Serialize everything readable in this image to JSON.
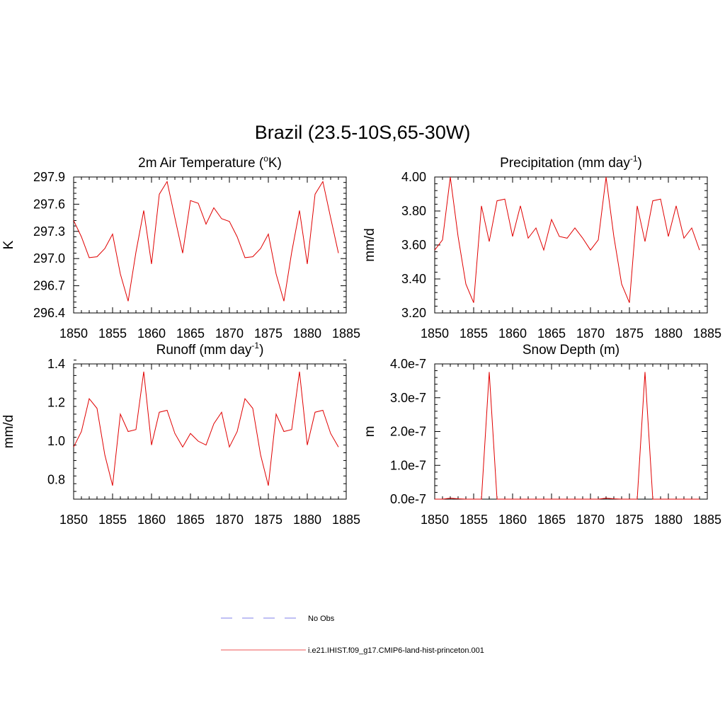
{
  "figure": {
    "title": "Brazil (23.5-10S,65-30W)"
  },
  "legend": {
    "entries": [
      {
        "label": "No Obs",
        "color": "#9999ee",
        "dash": "dashed"
      },
      {
        "label": "i.e21.IHIST.f09_g17.CMIP6-land-hist-princeton.001",
        "color": "#ee5555",
        "dash": "solid"
      }
    ]
  },
  "chart_data": [
    {
      "id": "temperature",
      "type": "line",
      "title": "2m Air Temperature (°K)",
      "title_parts": {
        "pre": "2m Air Temperature (",
        "sup": "o",
        "post": "K)"
      },
      "ylabel": "K",
      "xlabel": "",
      "xlim": [
        1850,
        1885
      ],
      "ylim": [
        296.4,
        297.9
      ],
      "xticks": [
        1850,
        1855,
        1860,
        1865,
        1870,
        1875,
        1880,
        1885
      ],
      "xtick_labels": [
        "1850",
        "1855",
        "1860",
        "1865",
        "1870",
        "1875",
        "1880",
        "1885"
      ],
      "yticks": [
        296.4,
        296.7,
        297.0,
        297.3,
        297.6,
        297.9
      ],
      "ytick_labels": [
        "296.4",
        "296.7",
        "297.0",
        "297.3",
        "297.6",
        "297.9"
      ],
      "series": [
        {
          "color": "#e00000",
          "x": [
            1850,
            1851,
            1852,
            1853,
            1854,
            1855,
            1856,
            1857,
            1858,
            1859,
            1860,
            1861,
            1862,
            1863,
            1864,
            1865,
            1866,
            1867,
            1868,
            1869,
            1870,
            1871,
            1872,
            1873,
            1874,
            1875,
            1876,
            1877,
            1878,
            1879,
            1880,
            1881,
            1882,
            1883,
            1884
          ],
          "values": [
            297.42,
            297.24,
            297.01,
            297.02,
            297.11,
            297.27,
            296.83,
            296.53,
            297.07,
            297.53,
            296.94,
            297.71,
            297.85,
            297.45,
            297.06,
            297.64,
            297.61,
            297.38,
            297.56,
            297.44,
            297.41,
            297.24,
            297.01,
            297.02,
            297.11,
            297.27,
            296.83,
            296.53,
            297.07,
            297.53,
            296.94,
            297.71,
            297.85,
            297.45,
            297.06
          ]
        }
      ]
    },
    {
      "id": "precipitation",
      "type": "line",
      "title": "Precipitation (mm day-1)",
      "title_parts": {
        "pre": "Precipitation (mm day",
        "sup": "-1",
        "post": ")"
      },
      "ylabel": "mm/d",
      "xlabel": "",
      "xlim": [
        1850,
        1885
      ],
      "ylim": [
        3.2,
        4.0
      ],
      "xticks": [
        1850,
        1855,
        1860,
        1865,
        1870,
        1875,
        1880,
        1885
      ],
      "xtick_labels": [
        "1850",
        "1855",
        "1860",
        "1865",
        "1870",
        "1875",
        "1880",
        "1885"
      ],
      "yticks": [
        3.2,
        3.4,
        3.6,
        3.8,
        4.0
      ],
      "ytick_labels": [
        "3.20",
        "3.40",
        "3.60",
        "3.80",
        "4.00"
      ],
      "series": [
        {
          "color": "#e00000",
          "x": [
            1850,
            1851,
            1852,
            1853,
            1854,
            1855,
            1856,
            1857,
            1858,
            1859,
            1860,
            1861,
            1862,
            1863,
            1864,
            1865,
            1866,
            1867,
            1868,
            1869,
            1870,
            1871,
            1872,
            1873,
            1874,
            1875,
            1876,
            1877,
            1878,
            1879,
            1880,
            1881,
            1882,
            1883,
            1884
          ],
          "values": [
            3.57,
            3.63,
            4.0,
            3.65,
            3.37,
            3.26,
            3.83,
            3.62,
            3.86,
            3.87,
            3.65,
            3.83,
            3.64,
            3.7,
            3.57,
            3.75,
            3.65,
            3.64,
            3.7,
            3.64,
            3.57,
            3.63,
            4.0,
            3.65,
            3.37,
            3.26,
            3.83,
            3.62,
            3.86,
            3.87,
            3.65,
            3.83,
            3.64,
            3.7,
            3.57
          ]
        }
      ]
    },
    {
      "id": "runoff",
      "type": "line",
      "title": "Runoff (mm day-1)",
      "title_parts": {
        "pre": "Runoff (mm day",
        "sup": "-1",
        "post": ")"
      },
      "ylabel": "mm/d",
      "xlabel": "",
      "xlim": [
        1850,
        1885
      ],
      "ylim": [
        0.7,
        1.4
      ],
      "xticks": [
        1850,
        1855,
        1860,
        1865,
        1870,
        1875,
        1880,
        1885
      ],
      "xtick_labels": [
        "1850",
        "1855",
        "1860",
        "1865",
        "1870",
        "1875",
        "1880",
        "1885"
      ],
      "yticks": [
        0.8,
        1.0,
        1.2,
        1.4
      ],
      "ytick_labels": [
        "0.8",
        "1.0",
        "1.2",
        "1.4"
      ],
      "series": [
        {
          "color": "#e00000",
          "x": [
            1850,
            1851,
            1852,
            1853,
            1854,
            1855,
            1856,
            1857,
            1858,
            1859,
            1860,
            1861,
            1862,
            1863,
            1864,
            1865,
            1866,
            1867,
            1868,
            1869,
            1870,
            1871,
            1872,
            1873,
            1874,
            1875,
            1876,
            1877,
            1878,
            1879,
            1880,
            1881,
            1882,
            1883,
            1884
          ],
          "values": [
            0.97,
            1.05,
            1.22,
            1.17,
            0.93,
            0.77,
            1.14,
            1.05,
            1.06,
            1.36,
            0.98,
            1.15,
            1.16,
            1.04,
            0.97,
            1.04,
            1.0,
            0.98,
            1.09,
            1.15,
            0.97,
            1.05,
            1.22,
            1.17,
            0.93,
            0.77,
            1.14,
            1.05,
            1.06,
            1.36,
            0.98,
            1.15,
            1.16,
            1.04,
            0.97
          ]
        }
      ]
    },
    {
      "id": "snow-depth",
      "type": "line",
      "title": "Snow Depth (m)",
      "title_parts": {
        "pre": "Snow Depth (m)",
        "sup": "",
        "post": ""
      },
      "ylabel": "m",
      "xlabel": "",
      "xlim": [
        1850,
        1885
      ],
      "ylim": [
        0,
        4e-07
      ],
      "xticks": [
        1850,
        1855,
        1860,
        1865,
        1870,
        1875,
        1880,
        1885
      ],
      "xtick_labels": [
        "1850",
        "1855",
        "1860",
        "1865",
        "1870",
        "1875",
        "1880",
        "1885"
      ],
      "yticks": [
        0,
        1e-07,
        2e-07,
        3e-07,
        4e-07
      ],
      "ytick_labels": [
        "0.0e-7",
        "1.0e-7",
        "2.0e-7",
        "3.0e-7",
        "4.0e-7"
      ],
      "series": [
        {
          "color": "#e00000",
          "x": [
            1850,
            1851,
            1852,
            1853,
            1854,
            1855,
            1856,
            1857,
            1858,
            1859,
            1860,
            1861,
            1862,
            1863,
            1864,
            1865,
            1866,
            1867,
            1868,
            1869,
            1870,
            1871,
            1872,
            1873,
            1874,
            1875,
            1876,
            1877,
            1878,
            1879,
            1880,
            1881,
            1882,
            1883,
            1884
          ],
          "values": [
            0,
            0,
            3e-09,
            1e-09,
            0,
            0,
            0,
            3.76e-07,
            0,
            0,
            0,
            0,
            0,
            0,
            0,
            0,
            0,
            0,
            0,
            0,
            0,
            0,
            3e-09,
            1e-09,
            0,
            0,
            0,
            3.76e-07,
            0,
            0,
            0,
            0,
            0,
            0,
            0
          ]
        }
      ]
    }
  ]
}
